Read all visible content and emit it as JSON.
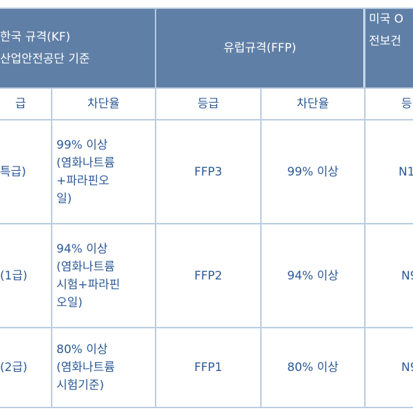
{
  "header": {
    "korea_line1": "한국 규격(KF)",
    "korea_line2": "산업안전공단 기준",
    "europe": "유럽규격(FFP)",
    "us_line1": "미국 O",
    "us_line2": "전보건"
  },
  "subheader": {
    "grade_partial": "급",
    "rate": "차단율",
    "eu_grade": "등급",
    "eu_rate": "차단율",
    "us_grade_partial": "등"
  },
  "rows": [
    {
      "kf_grade": "특급)",
      "kf_rate": "99% 이상\n(염화나트륨\n+파라핀오\n일)",
      "eu_grade": "FFP3",
      "eu_rate": "99% 이상",
      "us_grade": "N1"
    },
    {
      "kf_grade": "(1급)",
      "kf_rate": "94% 이상\n(염화나트륨\n시험+파라핀\n오일)",
      "eu_grade": "FFP2",
      "eu_rate": "94% 이상",
      "us_grade": "N9"
    },
    {
      "kf_grade": "(2급)",
      "kf_rate": "80% 이상\n(염화나트륨\n시험기준)",
      "eu_grade": "FFP1",
      "eu_rate": "80% 이상",
      "us_grade": "N9"
    }
  ],
  "colors": {
    "header_bg": "#5f7fa6",
    "border": "#b9cbe0",
    "text": "#2b5896"
  }
}
